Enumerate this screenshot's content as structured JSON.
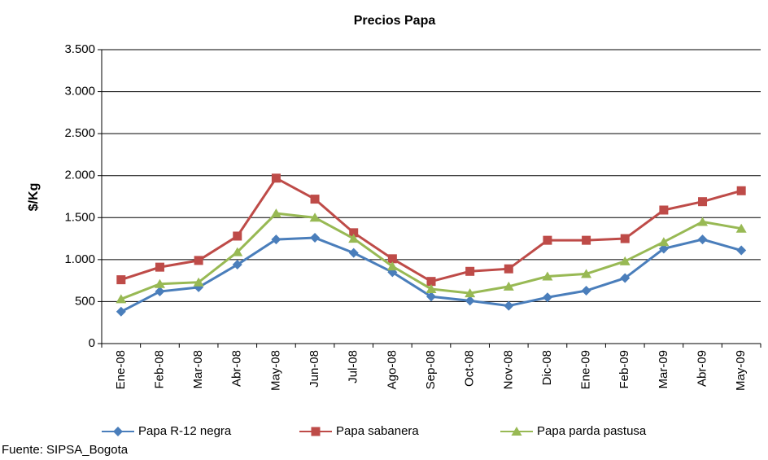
{
  "chart_data": {
    "type": "line",
    "title": "Precios Papa",
    "y_label": "$/Kg",
    "source": "Fuente: SIPSA_Bogota",
    "categories": [
      "Ene-08",
      "Feb-08",
      "Mar-08",
      "Abr-08",
      "May-08",
      "Jun-08",
      "Jul-08",
      "Ago-08",
      "Sep-08",
      "Oct-08",
      "Nov-08",
      "Dic-08",
      "Ene-09",
      "Feb-09",
      "Mar-09",
      "Abr-09",
      "May-09"
    ],
    "series": [
      {
        "name": "Papa R-12 negra",
        "color": "#4a7ebb",
        "marker": "diamond",
        "values": [
          380,
          620,
          670,
          940,
          1240,
          1260,
          1080,
          850,
          560,
          510,
          450,
          550,
          630,
          780,
          1130,
          1240,
          1110
        ]
      },
      {
        "name": "Papa sabanera",
        "color": "#be4b48",
        "marker": "square",
        "values": [
          760,
          910,
          990,
          1280,
          1970,
          1720,
          1320,
          1010,
          740,
          860,
          890,
          1230,
          1230,
          1250,
          1590,
          1690,
          1820
        ]
      },
      {
        "name": "Papa parda pastusa",
        "color": "#98b954",
        "marker": "triangle",
        "values": [
          530,
          710,
          730,
          1090,
          1550,
          1500,
          1250,
          920,
          650,
          600,
          680,
          800,
          830,
          980,
          1210,
          1450,
          1370
        ]
      }
    ],
    "ylim": [
      0,
      3500
    ],
    "yticks": [
      0,
      500,
      {
        "value": 1000,
        "label": "1.000"
      },
      {
        "value": 1500,
        "label": "1.500"
      },
      {
        "value": 2000,
        "label": "2.000"
      },
      {
        "value": 2500,
        "label": "2.500"
      },
      {
        "value": 3000,
        "label": "3.000"
      },
      {
        "value": 3500,
        "label": "3.500"
      }
    ],
    "grid": true,
    "legend": "bottom"
  }
}
